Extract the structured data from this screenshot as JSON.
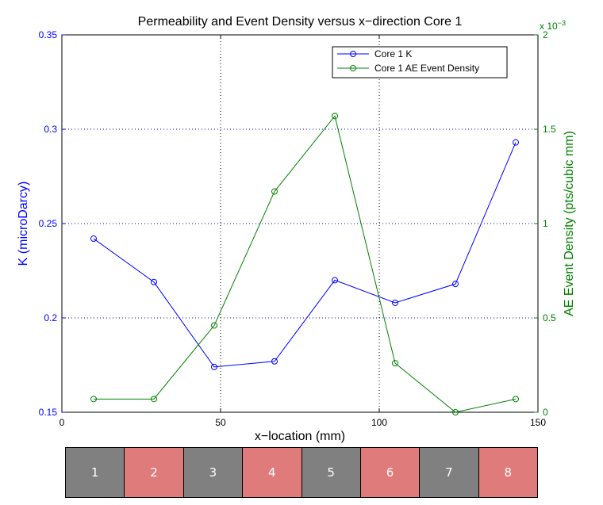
{
  "chart_data": {
    "type": "line",
    "title": "Permeability and Event Density versus x−direction Core 1",
    "xlabel": "x−location (mm)",
    "ylabel_left": "K (microDarcy)",
    "ylabel_right": "AE Event Density (pts/cubic mm)",
    "xlim": [
      0,
      150
    ],
    "ylim_left": [
      0.15,
      0.35
    ],
    "ylim_right": [
      0,
      0.002
    ],
    "right_axis_multiplier_label": "x 10",
    "right_axis_multiplier_exponent": "−3",
    "x_ticks": [
      "0",
      "50",
      "100",
      "150"
    ],
    "y_left_ticks": [
      "0.15",
      "0.2",
      "0.25",
      "0.3",
      "0.35"
    ],
    "y_right_ticks": [
      "0",
      "0.5",
      "1",
      "1.5",
      "2"
    ],
    "x_tick_values": [
      0,
      50,
      100,
      150
    ],
    "y_left_tick_values": [
      0.15,
      0.2,
      0.25,
      0.3,
      0.35
    ],
    "y_right_tick_values": [
      0,
      0.0005,
      0.001,
      0.0015,
      0.002
    ],
    "grid": "dotted, x at 50 and 100, y at 0.2, 0.25, 0.3",
    "legend_position": "top-right",
    "series": [
      {
        "name": "Core 1 K",
        "axis": "left",
        "color": "#0000ff",
        "marker": "circle",
        "x": [
          10,
          29,
          48,
          67,
          86,
          105,
          124,
          143
        ],
        "values": [
          0.242,
          0.219,
          0.174,
          0.177,
          0.22,
          0.208,
          0.218,
          0.293
        ]
      },
      {
        "name": "Core 1 AE Event Density",
        "axis": "right",
        "color": "#008000",
        "marker": "circle",
        "x": [
          10,
          29,
          48,
          67,
          86,
          105,
          124,
          143
        ],
        "values": [
          7e-05,
          7e-05,
          0.00046,
          0.00117,
          0.00157,
          0.00026,
          0.0,
          7e-05
        ]
      }
    ]
  },
  "segments": [
    {
      "label": "1",
      "color": "#808080"
    },
    {
      "label": "2",
      "color": "#e07b7b"
    },
    {
      "label": "3",
      "color": "#808080"
    },
    {
      "label": "4",
      "color": "#e07b7b"
    },
    {
      "label": "5",
      "color": "#808080"
    },
    {
      "label": "6",
      "color": "#e07b7b"
    },
    {
      "label": "7",
      "color": "#808080"
    },
    {
      "label": "8",
      "color": "#e07b7b"
    }
  ],
  "colors": {
    "left_axis": "#0000ff",
    "right_axis": "#008000",
    "grid": "#0000cc"
  }
}
